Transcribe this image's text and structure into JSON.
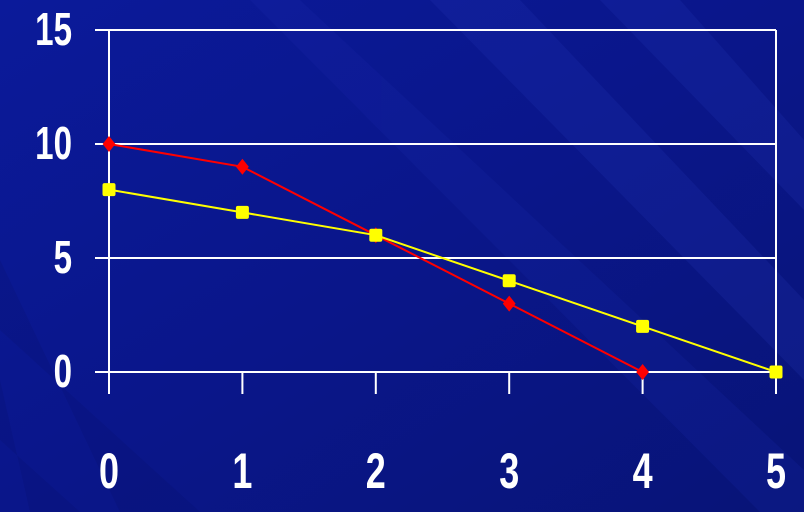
{
  "chart_data": {
    "type": "line",
    "title": "",
    "xlabel": "",
    "ylabel": "",
    "x": [
      0,
      1,
      2,
      3,
      4,
      5
    ],
    "xlim": [
      0,
      5
    ],
    "ylim": [
      0,
      15
    ],
    "yticks": [
      0,
      5,
      10,
      15
    ],
    "xticks": [
      0,
      1,
      2,
      3,
      4,
      5
    ],
    "grid": true,
    "series": [
      {
        "color": "#ff0000",
        "marker": "diamond",
        "x": [
          0,
          1,
          2,
          3,
          4
        ],
        "values": [
          10,
          9,
          6,
          3,
          0
        ]
      },
      {
        "color": "#ffff00",
        "marker": "square",
        "x": [
          0,
          1,
          2,
          3,
          4,
          5
        ],
        "values": [
          8,
          7,
          6,
          4,
          2,
          0
        ]
      }
    ],
    "colors": {
      "background": "#0a1a8c",
      "axis": "#ffffff",
      "grid": "#ffffff",
      "text": "#ffffff"
    }
  }
}
